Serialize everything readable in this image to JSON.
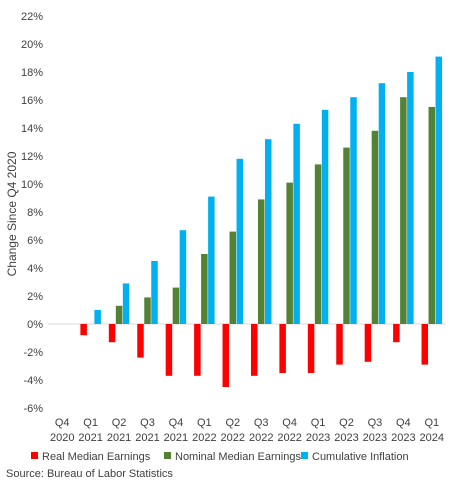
{
  "chart_data": {
    "type": "bar",
    "ylabel": "Change Since Q4 2020",
    "ylim": [
      -6,
      22
    ],
    "ytick_step": 2,
    "ytick_suffix": "%",
    "categories": [
      [
        "Q4",
        "2020"
      ],
      [
        "Q1",
        "2021"
      ],
      [
        "Q2",
        "2021"
      ],
      [
        "Q3",
        "2021"
      ],
      [
        "Q4",
        "2021"
      ],
      [
        "Q1",
        "2022"
      ],
      [
        "Q2",
        "2022"
      ],
      [
        "Q3",
        "2022"
      ],
      [
        "Q4",
        "2022"
      ],
      [
        "Q1",
        "2023"
      ],
      [
        "Q2",
        "2023"
      ],
      [
        "Q3",
        "2023"
      ],
      [
        "Q4",
        "2023"
      ],
      [
        "Q1",
        "2024"
      ]
    ],
    "series": [
      {
        "name": "Real Median Earnings",
        "color": "#ff0000",
        "values": [
          0,
          -0.8,
          -1.3,
          -2.4,
          -3.7,
          -3.7,
          -4.5,
          -3.7,
          -3.5,
          -3.5,
          -2.9,
          -2.7,
          -1.3,
          -2.9
        ]
      },
      {
        "name": "Nominal Median Earnings",
        "color": "#548235",
        "values": [
          0,
          0,
          1.3,
          1.9,
          2.6,
          5.0,
          6.6,
          8.9,
          10.1,
          11.4,
          12.6,
          13.8,
          16.2,
          15.5
        ]
      },
      {
        "name": "Cumulative Inflation",
        "color": "#00b0f0",
        "values": [
          0,
          1.0,
          2.9,
          4.5,
          6.7,
          9.1,
          11.8,
          13.2,
          14.3,
          15.3,
          16.2,
          17.2,
          18.0,
          19.1
        ]
      }
    ],
    "legend_position": "bottom",
    "grid": false
  },
  "source": "Source: Bureau of Labor Statistics"
}
